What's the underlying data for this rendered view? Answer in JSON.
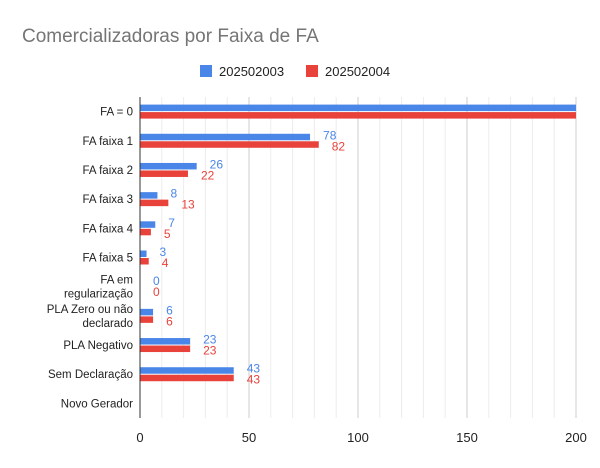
{
  "chart_data": {
    "type": "bar",
    "orientation": "horizontal",
    "title": "Comercializadoras por Faixa de FA",
    "categories": [
      "FA = 0",
      "FA faixa 1",
      "FA faixa 2",
      "FA faixa 3",
      "FA faixa 4",
      "FA faixa 5",
      "FA em regularização",
      "PLA Zero ou não declarado",
      "PLA Negativo",
      "Sem Declaração",
      "Novo Gerador"
    ],
    "category_label_lines": [
      [
        "FA = 0"
      ],
      [
        "FA faixa 1"
      ],
      [
        "FA faixa 2"
      ],
      [
        "FA faixa 3"
      ],
      [
        "FA faixa 4"
      ],
      [
        "FA faixa 5"
      ],
      [
        "FA em",
        "regularização"
      ],
      [
        "PLA Zero ou não",
        "declarado"
      ],
      [
        "PLA Negativo"
      ],
      [
        "Sem Declaração"
      ],
      [
        "Novo Gerador"
      ]
    ],
    "series": [
      {
        "name": "202502003",
        "color": "#4a86e8",
        "values": [
          200,
          78,
          26,
          8,
          7,
          3,
          0,
          6,
          23,
          43,
          null
        ],
        "labels": [
          "",
          "78",
          "26",
          "8",
          "7",
          "3",
          "0",
          "6",
          "23",
          "43",
          ""
        ]
      },
      {
        "name": "202502004",
        "color": "#e8423b",
        "values": [
          200,
          82,
          22,
          13,
          5,
          4,
          0,
          6,
          23,
          43,
          null
        ],
        "labels": [
          "",
          "82",
          "22",
          "13",
          "5",
          "4",
          "0",
          "6",
          "23",
          "43",
          ""
        ]
      }
    ],
    "xlim": [
      0,
      200
    ],
    "xticks": [
      "0",
      "50",
      "100",
      "150",
      "200"
    ],
    "grid": true,
    "legend_position": "top"
  }
}
